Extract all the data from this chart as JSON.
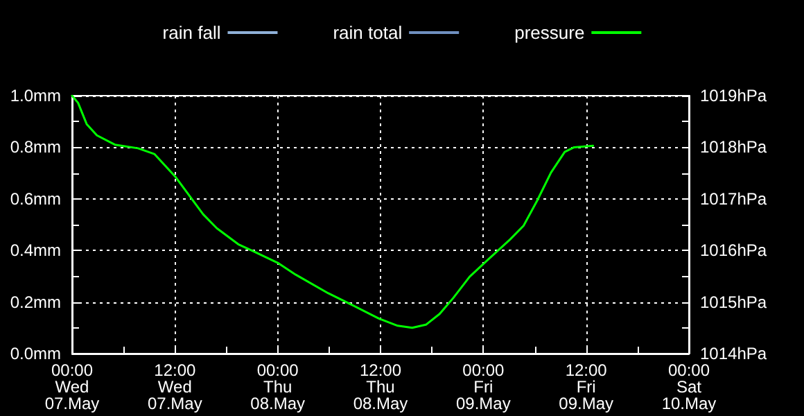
{
  "chart_data": {
    "type": "line",
    "x": [
      "--05-07T00:00",
      "--05-07T00:42",
      "--05-07T01:42",
      "--05-07T02:54",
      "--05-07T05:00",
      "--05-07T07:42",
      "--05-07T09:36",
      "--05-07T12:06",
      "--05-07T13:42",
      "--05-07T15:18",
      "--05-07T16:54",
      "--05-07T19:24",
      "--05-07T21:12",
      "--05-08T00:00",
      "--05-08T02:06",
      "--05-08T05:54",
      "--05-08T08:36",
      "--05-08T11:48",
      "--05-08T14:00",
      "--05-08T15:42",
      "--05-08T17:18",
      "--05-08T18:54",
      "--05-08T20:30",
      "--05-08T22:24",
      "--05-09T00:24",
      "--05-09T03:06",
      "--05-09T04:42",
      "--05-09T06:18",
      "--05-09T07:54",
      "--05-09T09:30",
      "--05-09T10:36",
      "--05-09T12:48"
    ],
    "series": [
      {
        "name": "rain fall",
        "color": "#8fb0d8",
        "values": [
          null,
          null,
          null,
          null,
          null,
          null,
          null,
          null,
          null,
          null,
          null,
          null,
          null,
          null,
          null,
          null,
          null,
          null,
          null,
          null,
          null,
          null,
          null,
          null,
          null,
          null,
          null,
          null,
          null,
          null,
          null,
          null
        ]
      },
      {
        "name": "rain total",
        "color": "#7090c0",
        "values": [
          null,
          null,
          null,
          null,
          null,
          null,
          null,
          null,
          null,
          null,
          null,
          null,
          null,
          null,
          null,
          null,
          null,
          null,
          null,
          null,
          null,
          null,
          null,
          null,
          null,
          null,
          null,
          null,
          null,
          null,
          null,
          null
        ]
      },
      {
        "name": "pressure",
        "color": "#00ff00",
        "axis": "y2",
        "values": [
          1019.0,
          1018.86,
          1018.45,
          1018.23,
          1018.05,
          1017.98,
          1017.87,
          1017.42,
          1017.06,
          1016.7,
          1016.43,
          1016.12,
          1015.98,
          1015.76,
          1015.53,
          1015.17,
          1014.95,
          1014.68,
          1014.54,
          1014.5,
          1014.56,
          1014.77,
          1015.08,
          1015.49,
          1015.8,
          1016.21,
          1016.48,
          1016.97,
          1017.51,
          1017.91,
          1018.0,
          1018.03
        ]
      }
    ],
    "xlim": [
      "--05-07T00:00",
      "--05-10T00:00"
    ],
    "xticks": [
      {
        "value": "--05-07T00:00",
        "label": "00:00\nWed\n07.May"
      },
      {
        "value": "--05-07T06:00",
        "label": null
      },
      {
        "value": "--05-07T12:00",
        "label": "12:00\nWed\n07.May"
      },
      {
        "value": "--05-07T18:00",
        "label": null
      },
      {
        "value": "--05-08T00:00",
        "label": "00:00\nThu\n08.May"
      },
      {
        "value": "--05-08T06:00",
        "label": null
      },
      {
        "value": "--05-08T12:00",
        "label": "12:00\nThu\n08.May"
      },
      {
        "value": "--05-08T18:00",
        "label": null
      },
      {
        "value": "--05-09T00:00",
        "label": "00:00\nFri\n09.May"
      },
      {
        "value": "--05-09T06:00",
        "label": null
      },
      {
        "value": "--05-09T12:00",
        "label": "12:00\nFri\n09.May"
      },
      {
        "value": "--05-09T18:00",
        "label": null
      },
      {
        "value": "--05-10T00:00",
        "label": "00:00\nSat\n10.May"
      }
    ],
    "ylim": [
      0,
      1
    ],
    "yticks": [
      {
        "value": 0,
        "label": "0.0mm"
      },
      {
        "value": 0.1,
        "label": null
      },
      {
        "value": 0.2,
        "label": "0.2mm"
      },
      {
        "value": 0.3,
        "label": null
      },
      {
        "value": 0.4,
        "label": "0.4mm"
      },
      {
        "value": 0.5,
        "label": null
      },
      {
        "value": 0.6,
        "label": "0.6mm"
      },
      {
        "value": 0.7,
        "label": null
      },
      {
        "value": 0.8,
        "label": "0.8mm"
      },
      {
        "value": 0.9,
        "label": null
      },
      {
        "value": 1,
        "label": "1.0mm"
      }
    ],
    "y2lim": [
      1014,
      1019
    ],
    "y2ticks": [
      {
        "value": 1014,
        "label": "1014hPa"
      },
      {
        "value": 1014.5,
        "label": null
      },
      {
        "value": 1015,
        "label": "1015hPa"
      },
      {
        "value": 1015.5,
        "label": null
      },
      {
        "value": 1016,
        "label": "1016hPa"
      },
      {
        "value": 1016.5,
        "label": null
      },
      {
        "value": 1017,
        "label": "1017hPa"
      },
      {
        "value": 1017.5,
        "label": null
      },
      {
        "value": 1018,
        "label": "1018hPa"
      },
      {
        "value": 1018.5,
        "label": null
      },
      {
        "value": 1019,
        "label": "1019hPa"
      }
    ],
    "grid": true,
    "legend": "top",
    "marker": "none",
    "line_style": "solid"
  }
}
